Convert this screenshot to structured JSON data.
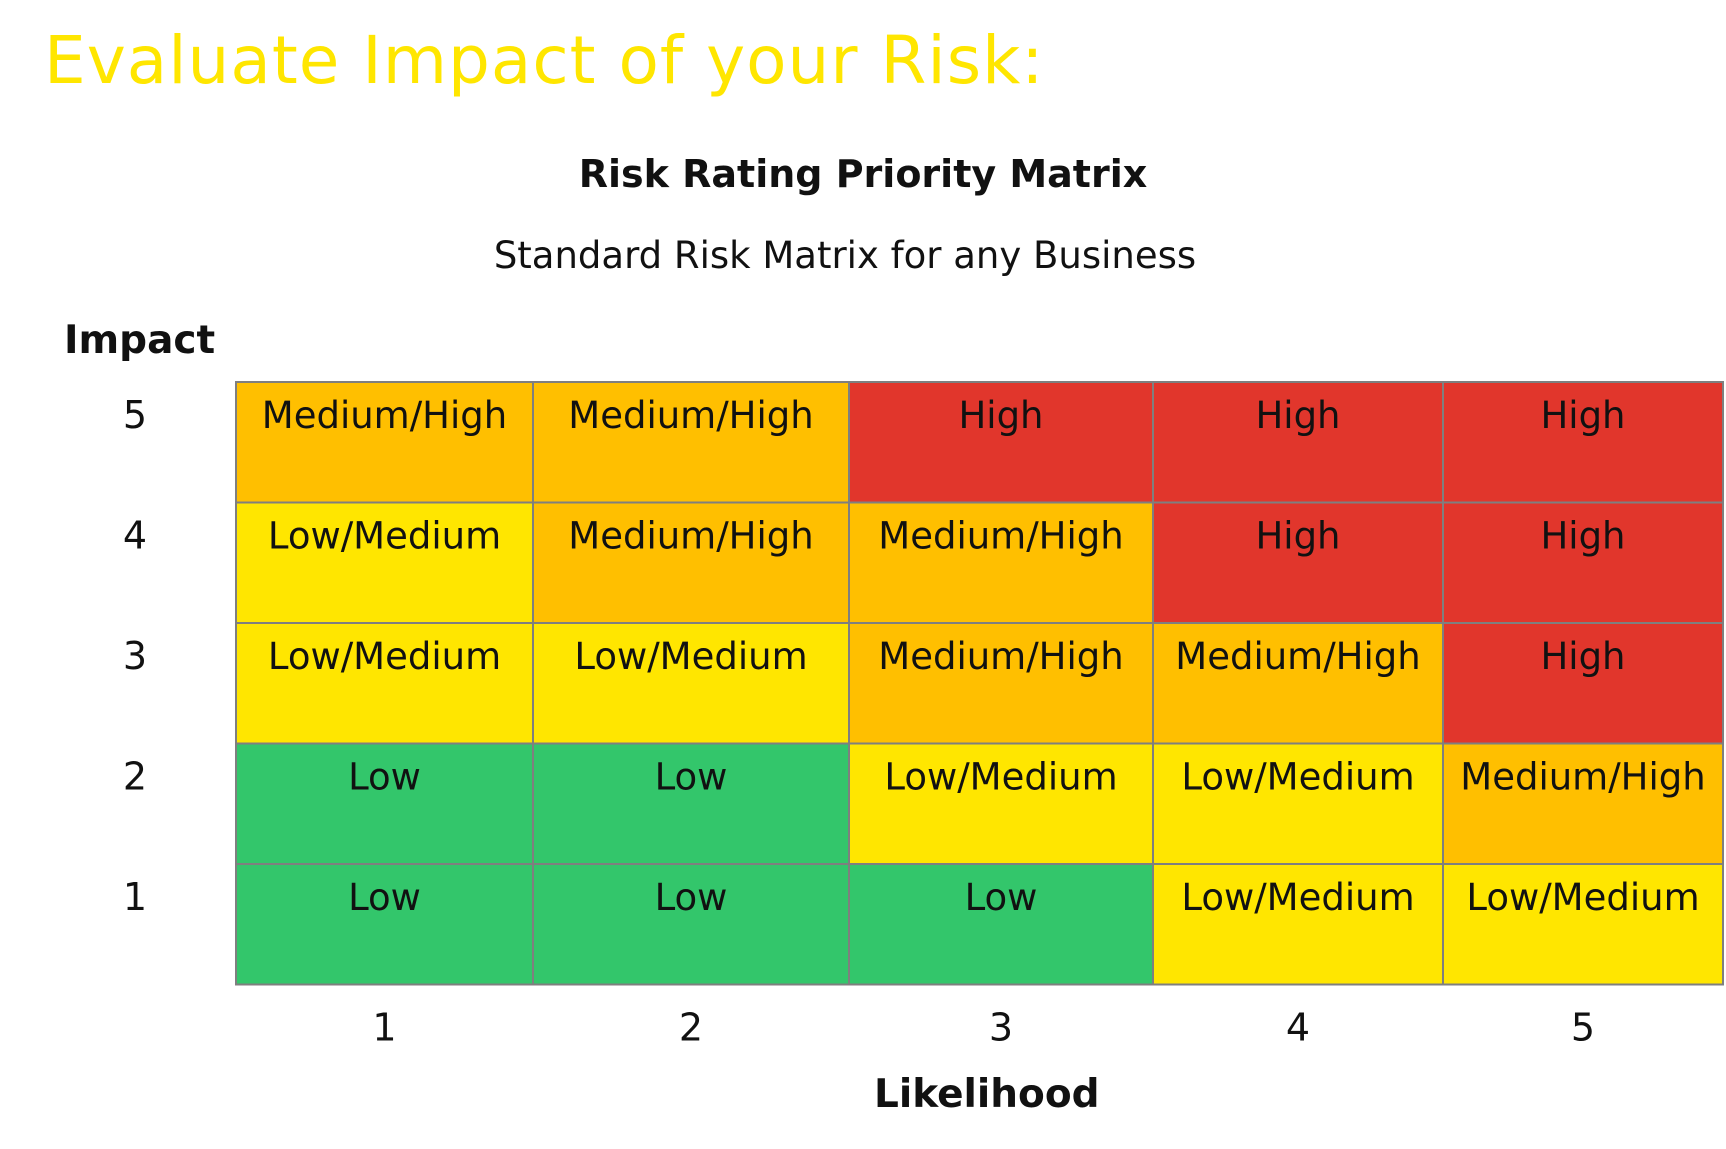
{
  "slide": {
    "title": "Evaluate Impact of your Risk:"
  },
  "colors": {
    "title_yellow": "#FFE600",
    "Low": "#33C66B",
    "Low/Medium": "#FFE600",
    "Medium/High": "#FFBF00",
    "High": "#E1362C",
    "grid_line": "#7F7F7F"
  },
  "chart_data": {
    "type": "heatmap",
    "title": "Risk Rating Priority Matrix",
    "subtitle": "Standard Risk Matrix for any Business",
    "xlabel": "Likelihood",
    "ylabel": "Impact",
    "x": [
      "1",
      "2",
      "3",
      "4",
      "5"
    ],
    "y": [
      "5",
      "4",
      "3",
      "2",
      "1"
    ],
    "rows": [
      [
        "Medium/High",
        "Medium/High",
        "High",
        "High",
        "High"
      ],
      [
        "Low/Medium",
        "Medium/High",
        "Medium/High",
        "High",
        "High"
      ],
      [
        "Low/Medium",
        "Low/Medium",
        "Medium/High",
        "Medium/High",
        "High"
      ],
      [
        "Low",
        "Low",
        "Low/Medium",
        "Low/Medium",
        "Medium/High"
      ],
      [
        "Low",
        "Low",
        "Low",
        "Low/Medium",
        "Low/Medium"
      ]
    ]
  }
}
